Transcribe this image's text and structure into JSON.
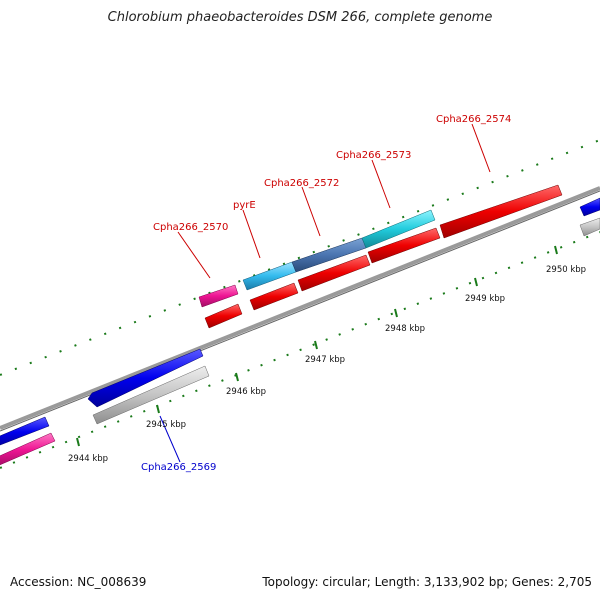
{
  "title": "Chlorobium phaeobacteroides DSM 266, complete genome",
  "footer": {
    "accession": "Accession: NC_008639",
    "topology": "Topology: circular; Length: 3,133,902 bp; Genes: 2,705"
  },
  "scale_labels": [
    "2944 kbp",
    "2945 kbp",
    "2946 kbp",
    "2947 kbp",
    "2948 kbp",
    "2949 kbp",
    "2950 kbp"
  ],
  "genes": [
    {
      "name": "Cpha266_2569",
      "color": "#0000cc"
    },
    {
      "name": "Cpha266_2570",
      "color": "#cc0000"
    },
    {
      "name": "pyrE",
      "color": "#cc0000"
    },
    {
      "name": "Cpha266_2572",
      "color": "#cc0000"
    },
    {
      "name": "Cpha266_2573",
      "color": "#cc0000"
    },
    {
      "name": "Cpha266_2574",
      "color": "#cc0000"
    }
  ],
  "colors": {
    "forward_cds": "#0000ee",
    "reverse_cds": "#ee0000",
    "pseudo_pink": "#ee1493",
    "gray_track": "#bbbbbb",
    "cyan_gene": "#22ccdd",
    "tick_green": "#1a7a1a",
    "backbone": "#888888"
  }
}
